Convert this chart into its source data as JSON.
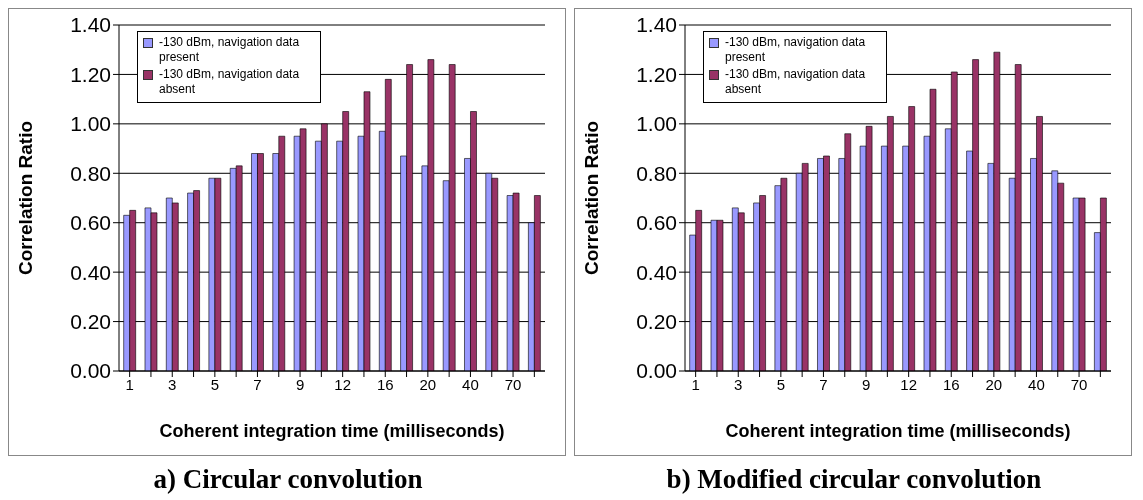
{
  "chart_data": [
    {
      "type": "bar",
      "title": "a) Circular convolution",
      "xlabel": "Coherent integration time (milliseconds)",
      "ylabel": "Correlation Ratio",
      "categories": [
        "1",
        null,
        "3",
        null,
        "5",
        null,
        "7",
        null,
        "9",
        null,
        "12",
        null,
        "16",
        null,
        "20",
        null,
        "40",
        null,
        "70",
        null
      ],
      "series": [
        {
          "name": "-130 dBm, navigation data present",
          "color": "#9999ff",
          "values": [
            0.63,
            0.66,
            0.7,
            0.72,
            0.78,
            0.82,
            0.88,
            0.88,
            0.95,
            0.93,
            0.93,
            0.95,
            0.97,
            0.87,
            0.83,
            0.77,
            0.86,
            0.8,
            0.71,
            0.6
          ]
        },
        {
          "name": "-130 dBm, navigation data absent",
          "color": "#993366",
          "values": [
            0.65,
            0.64,
            0.68,
            0.73,
            0.78,
            0.83,
            0.88,
            0.95,
            0.98,
            1.0,
            1.05,
            1.13,
            1.18,
            1.24,
            1.26,
            1.24,
            1.05,
            0.78,
            0.72,
            0.71
          ]
        }
      ],
      "ylim": [
        0,
        1.4
      ],
      "yticks": [
        {
          "value": 0,
          "label": "0.00"
        },
        {
          "value": 0.2,
          "label": "0.20"
        },
        {
          "value": 0.4,
          "label": "0.40"
        },
        {
          "value": 0.6,
          "label": "0.60"
        },
        {
          "value": 0.8,
          "label": "0.80"
        },
        {
          "value": 1.0,
          "label": "1.00"
        },
        {
          "value": 1.2,
          "label": "1.20"
        },
        {
          "value": 1.4,
          "label": "1.40"
        }
      ],
      "grid": "y",
      "legend": "top left"
    },
    {
      "type": "bar",
      "title": "b) Modified circular convolution",
      "xlabel": "Coherent integration time (milliseconds)",
      "ylabel": "Correlation Ratio",
      "categories": [
        "1",
        null,
        "3",
        null,
        "5",
        null,
        "7",
        null,
        "9",
        null,
        "12",
        null,
        "16",
        null,
        "20",
        null,
        "40",
        null,
        "70",
        null
      ],
      "series": [
        {
          "name": "-130 dBm, navigation data present",
          "color": "#9999ff",
          "values": [
            0.55,
            0.61,
            0.66,
            0.68,
            0.75,
            0.8,
            0.86,
            0.86,
            0.91,
            0.91,
            0.91,
            0.95,
            0.98,
            0.89,
            0.84,
            0.78,
            0.86,
            0.81,
            0.7,
            0.56
          ]
        },
        {
          "name": "-130 dBm, navigation data absent",
          "color": "#993366",
          "values": [
            0.65,
            0.61,
            0.64,
            0.71,
            0.78,
            0.84,
            0.87,
            0.96,
            0.99,
            1.03,
            1.07,
            1.14,
            1.21,
            1.26,
            1.29,
            1.24,
            1.03,
            0.76,
            0.7,
            0.7
          ]
        }
      ],
      "ylim": [
        0,
        1.4
      ],
      "yticks": [
        {
          "value": 0,
          "label": "0.00"
        },
        {
          "value": 0.2,
          "label": "0.20"
        },
        {
          "value": 0.4,
          "label": "0.40"
        },
        {
          "value": 0.6,
          "label": "0.60"
        },
        {
          "value": 0.8,
          "label": "0.80"
        },
        {
          "value": 1.0,
          "label": "1.00"
        },
        {
          "value": 1.2,
          "label": "1.20"
        },
        {
          "value": 1.4,
          "label": "1.40"
        }
      ],
      "grid": "y",
      "legend": "top left"
    }
  ]
}
